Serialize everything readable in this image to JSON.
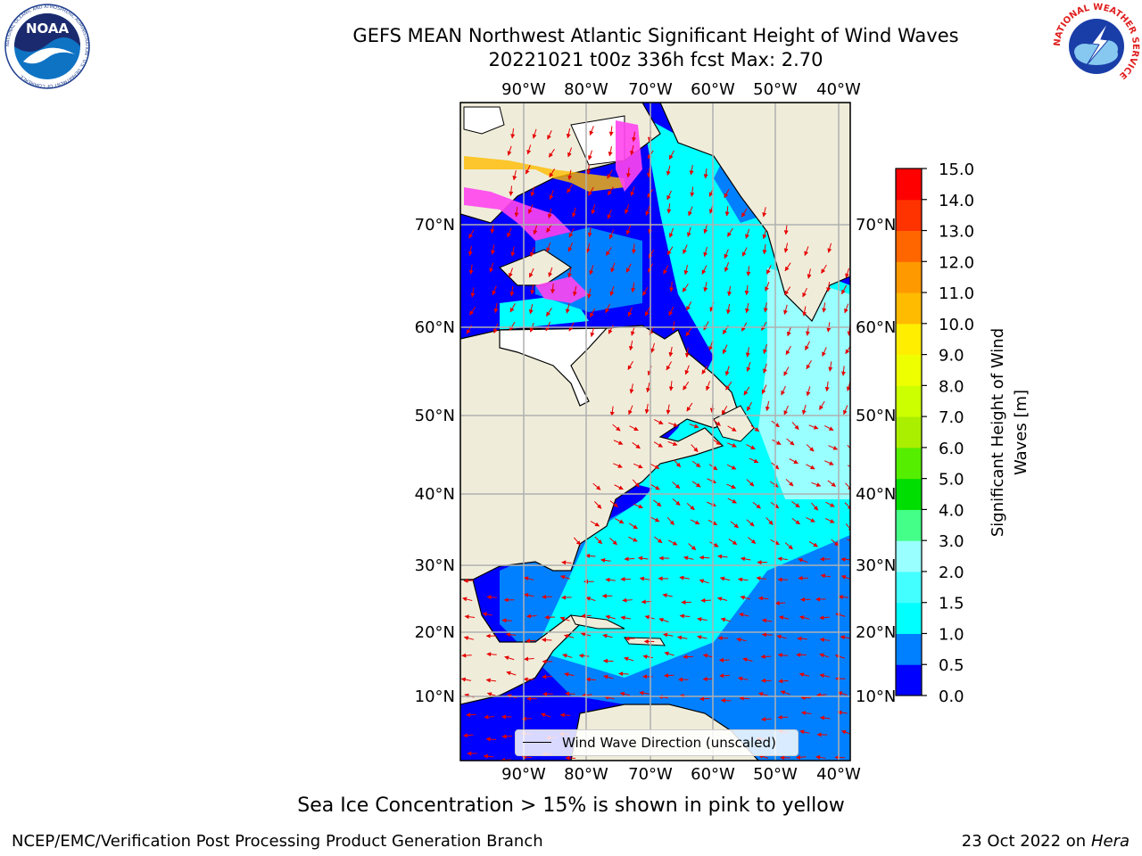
{
  "header": {
    "title_line1": "GEFS MEAN Northwest Atlantic Significant Height of Wind Waves",
    "title_line2": "20221021 t00z 336h fcst   Max: 2.70"
  },
  "logos": {
    "left": "NOAA",
    "left_ring_text": "NATIONAL OCEANIC AND ATMOSPHERIC ADMINISTRATION · U.S. DEPARTMENT OF COMMERCE",
    "right_ring_text": "NATIONAL WEATHER SERVICE"
  },
  "map": {
    "lon_labels": [
      "90°W",
      "80°W",
      "70°W",
      "60°W",
      "50°W",
      "40°W"
    ],
    "lat_labels": [
      "70°N",
      "60°N",
      "50°N",
      "40°N",
      "30°N",
      "20°N",
      "10°N"
    ],
    "colors": {
      "land": "#efedda",
      "ocean_low": "#0000ff",
      "ocean_mid": "#0080ff",
      "ocean_cyan": "#00ffff",
      "ocean_light": "#99ffff",
      "arrow": "#e60000",
      "grid": "#b0b0b0",
      "ice_pink": "#ff44ee",
      "ice_yellow": "#ffbb00"
    }
  },
  "legend": {
    "label": "Wind Wave Direction (unscaled)"
  },
  "colorbar": {
    "label_line1": "Significant Height of Wind",
    "label_line2": "Waves [m]",
    "ticks": [
      "0.0",
      "0.5",
      "1.0",
      "1.5",
      "2.0",
      "3.0",
      "4.0",
      "5.0",
      "6.0",
      "7.0",
      "8.0",
      "9.0",
      "10.0",
      "11.0",
      "12.0",
      "13.0",
      "14.0",
      "15.0"
    ],
    "colors": [
      "#0000ff",
      "#0080ff",
      "#00ffff",
      "#44ffff",
      "#99ffff",
      "#44ff88",
      "#00dd00",
      "#55ee00",
      "#aaee00",
      "#ccff00",
      "#eeff00",
      "#ffee00",
      "#ffbb00",
      "#ff9900",
      "#ff6600",
      "#ff3300",
      "#ff0000"
    ]
  },
  "caption": "Sea Ice Concentration > 15% is shown in pink to yellow",
  "footer": {
    "left": "NCEP/EMC/Verification Post Processing Product Generation Branch",
    "right_prefix": "23 Oct 2022 on ",
    "right_italic": "Hera"
  }
}
